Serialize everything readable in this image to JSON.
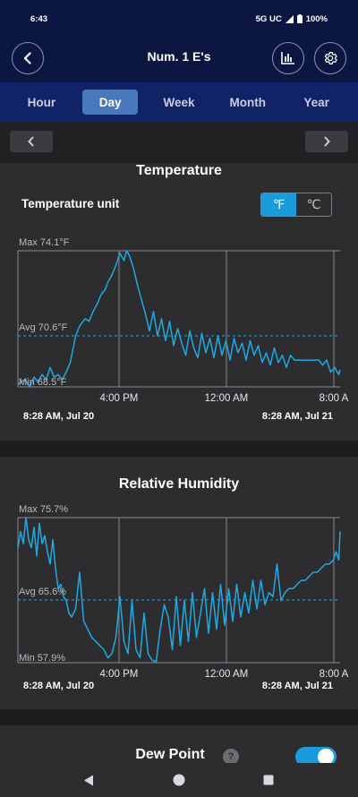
{
  "status": {
    "time": "6:43",
    "network": "5G UC",
    "battery": "100%"
  },
  "header": {
    "title": "Num. 1 E's",
    "back_icon": "arrow-left-icon",
    "chart_icon": "bar-chart-icon",
    "settings_icon": "gear-icon"
  },
  "tabs": [
    {
      "label": "Hour",
      "active": false
    },
    {
      "label": "Day",
      "active": true
    },
    {
      "label": "Week",
      "active": false
    },
    {
      "label": "Month",
      "active": false
    },
    {
      "label": "Year",
      "active": false
    }
  ],
  "temperature": {
    "title": "Temperature",
    "unit_label": "Temperature unit",
    "units": [
      {
        "label": "℉",
        "active": true
      },
      {
        "label": "℃",
        "active": false
      }
    ],
    "range_start": "8:28 AM, Jul 20",
    "range_end": "8:28 AM, Jul 21"
  },
  "humidity": {
    "title": "Relative Humidity",
    "range_start": "8:28 AM, Jul 20",
    "range_end": "8:28 AM, Jul 21"
  },
  "dew_point": {
    "title": "Dew Point",
    "help": "?",
    "enabled": true
  },
  "colors": {
    "line": "#1fa9e3",
    "accent": "#1a9bdc",
    "header": "#0b1740",
    "tabs": "#102367"
  },
  "chart_data": [
    {
      "type": "line",
      "title": "Temperature",
      "unit": "°F",
      "ylim": [
        68.5,
        74.1
      ],
      "grid": true,
      "x_ticks": [
        "4:00 PM",
        "12:00 AM",
        "8:00 A"
      ],
      "x_tick_hours": [
        7.53,
        15.53,
        23.53
      ],
      "x_span_hours": 24,
      "max_label": "Max 74.1°F",
      "avg_label": "Avg 70.6°F",
      "min_label": "Min 68.5°F",
      "max": 74.1,
      "avg": 70.6,
      "min": 68.5,
      "series": [
        {
          "x_hours": [
            0,
            0.5,
            0.9,
            1.2,
            1.5,
            1.8,
            2.1,
            2.4,
            2.7,
            3,
            3.3,
            3.6,
            3.9,
            4.3,
            4.6,
            5,
            5.3,
            5.6,
            5.9,
            6.2,
            6.5,
            6.7,
            7,
            7.3,
            7.6,
            7.9,
            8.1,
            8.3,
            8.6,
            8.9,
            9.2,
            9.5,
            9.8,
            10.1,
            10.4,
            10.7,
            11,
            11.3,
            11.6,
            11.9,
            12.2,
            12.5,
            12.8,
            13.1,
            13.4,
            13.7,
            14,
            14.3,
            14.6,
            14.9,
            15.2,
            15.5,
            15.8,
            16.1,
            16.4,
            16.7,
            17,
            17.3,
            17.6,
            17.9,
            18.2,
            18.5,
            18.8,
            19.1,
            19.4,
            19.7,
            20,
            20.3,
            20.6,
            20.9,
            21.2,
            21.5,
            21.8,
            22.1,
            22.4,
            22.7,
            23,
            23.3,
            23.6,
            23.9,
            24
          ],
          "y": [
            68.6,
            68.8,
            68.5,
            68.9,
            68.7,
            69.0,
            68.8,
            69.3,
            68.9,
            69.0,
            68.8,
            69.1,
            69.5,
            70.6,
            71.0,
            71.3,
            71.2,
            71.6,
            71.9,
            72.3,
            72.5,
            72.8,
            73.1,
            73.5,
            74.0,
            73.7,
            74.1,
            73.9,
            73.4,
            72.7,
            72.1,
            71.5,
            70.8,
            71.6,
            70.6,
            71.3,
            70.4,
            71.2,
            70.2,
            70.9,
            70.3,
            69.8,
            70.8,
            70.1,
            69.7,
            70.7,
            69.9,
            70.5,
            69.7,
            70.6,
            69.8,
            70.4,
            69.6,
            70.5,
            69.9,
            70.3,
            69.6,
            70.4,
            69.8,
            70.2,
            69.5,
            69.9,
            69.4,
            70.1,
            69.5,
            69.8,
            69.3,
            69.8,
            69.6,
            69.6,
            69.6,
            69.6,
            69.6,
            69.6,
            69.6,
            69.4,
            69.6,
            69.1,
            69.3,
            69.0,
            69.2
          ]
        }
      ]
    },
    {
      "type": "line",
      "title": "Relative Humidity",
      "unit": "%",
      "ylim": [
        57.9,
        75.7
      ],
      "grid": true,
      "x_ticks": [
        "4:00 PM",
        "12:00 AM",
        "8:00 A"
      ],
      "x_tick_hours": [
        7.53,
        15.53,
        23.53
      ],
      "x_span_hours": 24,
      "max_label": "Max 75.7%",
      "avg_label": "Avg 65.6%",
      "min_label": "Min 57.9%",
      "max": 75.7,
      "avg": 65.6,
      "min": 57.9,
      "series": [
        {
          "x_hours": [
            0,
            0.2,
            0.4,
            0.6,
            0.8,
            1.0,
            1.2,
            1.4,
            1.6,
            1.8,
            2.0,
            2.2,
            2.4,
            2.6,
            2.8,
            3.0,
            3.2,
            3.4,
            3.6,
            3.8,
            4.0,
            4.3,
            4.6,
            4.9,
            5.2,
            5.5,
            5.8,
            6.1,
            6.4,
            6.7,
            7.0,
            7.3,
            7.6,
            7.9,
            8.2,
            8.5,
            8.8,
            9.1,
            9.4,
            9.7,
            10.0,
            10.3,
            10.6,
            10.9,
            11.2,
            11.5,
            11.8,
            12.1,
            12.4,
            12.7,
            13.0,
            13.3,
            13.6,
            13.9,
            14.2,
            14.5,
            14.8,
            15.1,
            15.4,
            15.7,
            16.0,
            16.3,
            16.6,
            16.9,
            17.2,
            17.5,
            17.8,
            18.1,
            18.4,
            18.7,
            19.0,
            19.3,
            19.6,
            19.9,
            20.2,
            20.5,
            20.8,
            21.1,
            21.4,
            21.7,
            22.0,
            22.3,
            22.6,
            22.9,
            23.2,
            23.5,
            23.7,
            23.9,
            24.0
          ],
          "y": [
            72.0,
            74.0,
            72.5,
            75.7,
            73.0,
            72.0,
            74.5,
            71.0,
            75.0,
            72.5,
            73.5,
            71.5,
            70.0,
            73.0,
            69.5,
            67.0,
            67.5,
            66.0,
            65.5,
            64.0,
            63.5,
            64.5,
            69.0,
            63.0,
            62.0,
            61.0,
            60.5,
            60.0,
            59.5,
            58.5,
            59.0,
            61.0,
            66.0,
            60.5,
            59.0,
            65.5,
            59.5,
            58.5,
            64.0,
            59.0,
            58.2,
            58.0,
            62.0,
            65.0,
            63.5,
            59.5,
            66.0,
            60.0,
            65.5,
            60.5,
            66.5,
            61.0,
            64.0,
            67.0,
            61.5,
            66.5,
            62.0,
            67.5,
            62.5,
            67.0,
            63.0,
            67.5,
            63.5,
            66.5,
            64.0,
            68.0,
            64.5,
            68.0,
            65.0,
            66.5,
            66.0,
            70.0,
            65.5,
            66.5,
            67.0,
            67.0,
            67.5,
            68.0,
            68.0,
            68.5,
            69.0,
            69.0,
            69.5,
            70.0,
            70.0,
            70.5,
            71.5,
            70.5,
            74.0
          ]
        }
      ]
    }
  ]
}
